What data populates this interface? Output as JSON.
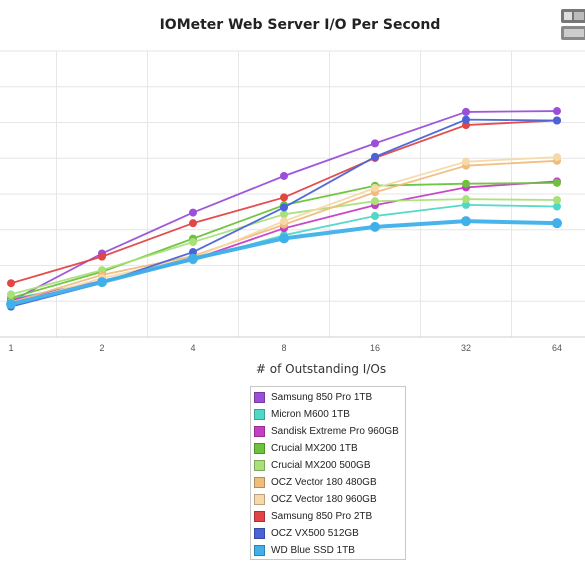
{
  "chart_data": {
    "type": "line",
    "title": "IOMeter Web Server I/O Per Second",
    "xlabel": "# of Outstanding I/Os",
    "ylabel": "",
    "x": [
      1,
      2,
      4,
      8,
      16,
      32,
      64
    ],
    "x_scale": "log2",
    "ylim": [
      0,
      100
    ],
    "grid": true,
    "legend": "bottom-center",
    "series": [
      {
        "name": "Samsung 850 Pro 1TB",
        "color": "#9b4fd9",
        "values": [
          12.5,
          29.2,
          43.5,
          56.3,
          67.7,
          78.7,
          79.0
        ]
      },
      {
        "name": "Micron M600 1TB",
        "color": "#4fd8c6",
        "values": [
          13.3,
          19.4,
          26.8,
          35.6,
          42.3,
          46.2,
          45.6
        ]
      },
      {
        "name": "Sandisk Extreme Pro 960GB",
        "color": "#c43fc4",
        "values": [
          12.9,
          19.6,
          27.1,
          38.0,
          46.1,
          52.3,
          54.4
        ]
      },
      {
        "name": "Crucial MX200 1TB",
        "color": "#6cc23a",
        "values": [
          13.7,
          22.8,
          34.4,
          46.1,
          52.9,
          53.6,
          53.9
        ]
      },
      {
        "name": "Crucial MX200 500GB",
        "color": "#a8e07a",
        "values": [
          14.9,
          23.4,
          33.2,
          42.9,
          47.5,
          48.2,
          47.9
        ]
      },
      {
        "name": "OCZ Vector 180 480GB",
        "color": "#f0bc7c",
        "values": [
          12.1,
          21.7,
          28.3,
          39.3,
          50.6,
          59.9,
          61.6
        ]
      },
      {
        "name": "OCZ Vector 180 960GB",
        "color": "#f7d8a8",
        "values": [
          11.4,
          20.6,
          27.7,
          40.5,
          52.1,
          61.3,
          62.9
        ]
      },
      {
        "name": "Samsung 850 Pro 2TB",
        "color": "#e24545",
        "values": [
          18.8,
          28.1,
          39.8,
          48.8,
          62.6,
          74.1,
          75.7
        ]
      },
      {
        "name": "OCZ VX500 512GB",
        "color": "#4a63d8",
        "values": [
          10.6,
          18.9,
          29.7,
          45.3,
          63.0,
          76.0,
          75.7
        ]
      },
      {
        "name": "WD Blue SSD 1TB",
        "color": "#3fb0ea",
        "values": [
          11.5,
          19.2,
          27.4,
          34.5,
          38.5,
          40.5,
          39.8
        ]
      }
    ]
  }
}
